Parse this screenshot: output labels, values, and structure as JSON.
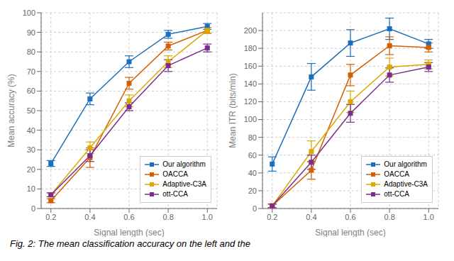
{
  "chart_data": [
    {
      "type": "line",
      "x": [
        0.2,
        0.4,
        0.6,
        0.8,
        1.0
      ],
      "xlim": [
        0.15,
        1.05
      ],
      "xticks": [
        0.2,
        0.4,
        0.6,
        0.8,
        {
          "value": 1.0,
          "label": "1.0"
        }
      ],
      "ylim": [
        0,
        100
      ],
      "yticks": [
        0,
        10,
        20,
        30,
        40,
        50,
        60,
        70,
        80,
        90,
        100
      ],
      "xlabel": "Signal length (sec)",
      "ylabel": "Mean accuracy (%)",
      "grid": true,
      "legend": "lower right",
      "marker": "square",
      "series": [
        {
          "name": "Our algorithm",
          "color": "#1a6fbd",
          "values": [
            23,
            56,
            75,
            89,
            93
          ],
          "errors": [
            1.5,
            3,
            3,
            2,
            1.5
          ]
        },
        {
          "name": "OACCA",
          "color": "#d45f00",
          "values": [
            4,
            26,
            64,
            83,
            91
          ],
          "errors": [
            1,
            5,
            3,
            2,
            1.5
          ]
        },
        {
          "name": "Adaptive-C3A",
          "color": "#dba800",
          "values": [
            7,
            31,
            55,
            75,
            91
          ],
          "errors": [
            1,
            3,
            3,
            3,
            1.5
          ]
        },
        {
          "name": "ott-CCA",
          "color": "#7b2d8b",
          "values": [
            7,
            27,
            52,
            73,
            82
          ],
          "errors": [
            1,
            3,
            2,
            3,
            2
          ]
        }
      ]
    },
    {
      "type": "line",
      "x": [
        0.2,
        0.4,
        0.6,
        0.8,
        1.0
      ],
      "xlim": [
        0.15,
        1.05
      ],
      "xticks": [
        0.2,
        0.4,
        0.6,
        0.8,
        {
          "value": 1.0,
          "label": "1.0"
        }
      ],
      "ylim": [
        0,
        220
      ],
      "yticks": [
        0,
        20,
        40,
        60,
        80,
        100,
        120,
        140,
        160,
        180,
        200
      ],
      "xlabel": "Signal length (sec)",
      "ylabel": "Mean ITR (bits/min)",
      "grid": true,
      "legend": "lower right",
      "marker": "square",
      "series": [
        {
          "name": "Our algorithm",
          "color": "#1a6fbd",
          "values": [
            50,
            148,
            186,
            202,
            185
          ],
          "errors": [
            8,
            15,
            15,
            12,
            5
          ]
        },
        {
          "name": "OACCA",
          "color": "#d45f00",
          "values": [
            3,
            43,
            150,
            183,
            181
          ],
          "errors": [
            2,
            10,
            12,
            10,
            5
          ]
        },
        {
          "name": "Adaptive-C3A",
          "color": "#dba800",
          "values": [
            3,
            64,
            120,
            159,
            162
          ],
          "errors": [
            2,
            12,
            12,
            10,
            5
          ]
        },
        {
          "name": "ott-CCA",
          "color": "#7b2d8b",
          "values": [
            3,
            52,
            107,
            150,
            159
          ],
          "errors": [
            2,
            8,
            10,
            8,
            5
          ]
        }
      ]
    }
  ],
  "caption": "Fig. 2: The mean classification accuracy on the left and the"
}
